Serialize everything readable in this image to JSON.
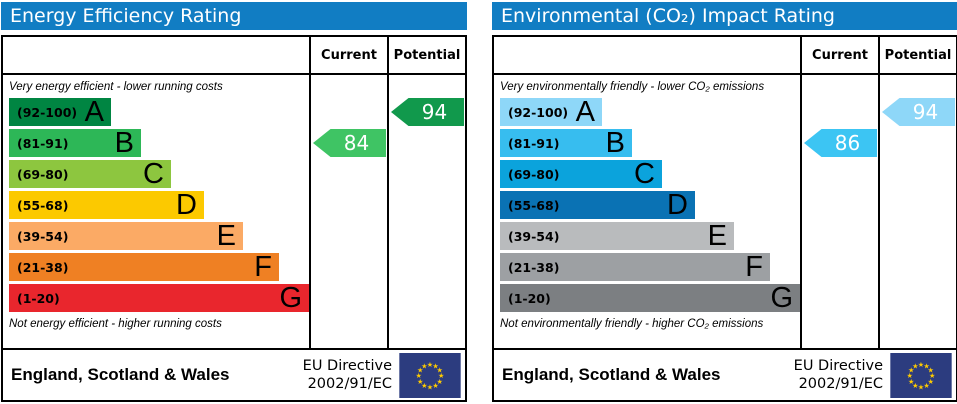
{
  "colors": {
    "header_bg": "#117dc3",
    "border": "#000000",
    "eu_flag_bg": "#2c3c7f",
    "eu_star": "#ffcc00",
    "arrow_text": "#ffffff"
  },
  "panels": [
    {
      "title": "Energy Efficiency Rating",
      "columns": {
        "current": "Current",
        "potential": "Potential"
      },
      "top_caption": "Very energy efficient - lower running costs",
      "bottom_caption": "Not energy efficient - higher running costs",
      "bands": [
        {
          "letter": "A",
          "range": "(92-100)",
          "color": "#008542",
          "width_pct": 34
        },
        {
          "letter": "B",
          "range": "(81-91)",
          "color": "#2db757",
          "width_pct": 44
        },
        {
          "letter": "C",
          "range": "(69-80)",
          "color": "#8dc63f",
          "width_pct": 54
        },
        {
          "letter": "D",
          "range": "(55-68)",
          "color": "#fcc900",
          "width_pct": 65
        },
        {
          "letter": "E",
          "range": "(39-54)",
          "color": "#fbaa65",
          "width_pct": 78
        },
        {
          "letter": "F",
          "range": "(21-38)",
          "color": "#ef8023",
          "width_pct": 90
        },
        {
          "letter": "G",
          "range": "(1-20)",
          "color": "#e9262d",
          "width_pct": 100
        }
      ],
      "current": {
        "value": "84",
        "band": "B",
        "color": "#3fc464"
      },
      "potential": {
        "value": "94",
        "band": "A",
        "color": "#11994c"
      },
      "footer": {
        "region": "England, Scotland & Wales",
        "directive_line1": "EU Directive",
        "directive_line2": "2002/91/EC"
      }
    },
    {
      "title": "Environmental (CO₂) Impact Rating",
      "columns": {
        "current": "Current",
        "potential": "Potential"
      },
      "top_caption": "Very environmentally friendly - lower CO₂ emissions",
      "bottom_caption": "Not environmentally friendly - higher CO₂ emissions",
      "bands": [
        {
          "letter": "A",
          "range": "(92-100)",
          "color": "#8ed7f8",
          "width_pct": 34
        },
        {
          "letter": "B",
          "range": "(81-91)",
          "color": "#37bdef",
          "width_pct": 44
        },
        {
          "letter": "C",
          "range": "(69-80)",
          "color": "#0ba3dc",
          "width_pct": 54
        },
        {
          "letter": "D",
          "range": "(55-68)",
          "color": "#0a72b4",
          "width_pct": 65
        },
        {
          "letter": "E",
          "range": "(39-54)",
          "color": "#b9bbbd",
          "width_pct": 78
        },
        {
          "letter": "F",
          "range": "(21-38)",
          "color": "#9da0a3",
          "width_pct": 90
        },
        {
          "letter": "G",
          "range": "(1-20)",
          "color": "#7c7f82",
          "width_pct": 100
        }
      ],
      "current": {
        "value": "86",
        "band": "B",
        "color": "#3cc5f3"
      },
      "potential": {
        "value": "94",
        "band": "A",
        "color": "#8ed7f8"
      },
      "footer": {
        "region": "England, Scotland & Wales",
        "directive_line1": "EU Directive",
        "directive_line2": "2002/91/EC"
      }
    }
  ],
  "chart_data": [
    {
      "type": "bar",
      "title": "Energy Efficiency Rating",
      "categories": [
        "A (92-100)",
        "B (81-91)",
        "C (69-80)",
        "D (55-68)",
        "E (39-54)",
        "F (21-38)",
        "G (1-20)"
      ],
      "band_bar_lengths_pct": [
        34,
        44,
        54,
        65,
        78,
        90,
        100
      ],
      "series": [
        {
          "name": "Current",
          "value": 84,
          "band": "B"
        },
        {
          "name": "Potential",
          "value": 94,
          "band": "A"
        }
      ],
      "top_note": "Very energy efficient - lower running costs",
      "bottom_note": "Not energy efficient - higher running costs",
      "region": "England, Scotland & Wales",
      "directive": "EU Directive 2002/91/EC",
      "value_range": [
        1,
        100
      ]
    },
    {
      "type": "bar",
      "title": "Environmental (CO₂) Impact Rating",
      "categories": [
        "A (92-100)",
        "B (81-91)",
        "C (69-80)",
        "D (55-68)",
        "E (39-54)",
        "F (21-38)",
        "G (1-20)"
      ],
      "band_bar_lengths_pct": [
        34,
        44,
        54,
        65,
        78,
        90,
        100
      ],
      "series": [
        {
          "name": "Current",
          "value": 86,
          "band": "B"
        },
        {
          "name": "Potential",
          "value": 94,
          "band": "A"
        }
      ],
      "top_note": "Very environmentally friendly - lower CO₂ emissions",
      "bottom_note": "Not environmentally friendly - higher CO₂ emissions",
      "region": "England, Scotland & Wales",
      "directive": "EU Directive 2002/91/EC",
      "value_range": [
        1,
        100
      ]
    }
  ]
}
